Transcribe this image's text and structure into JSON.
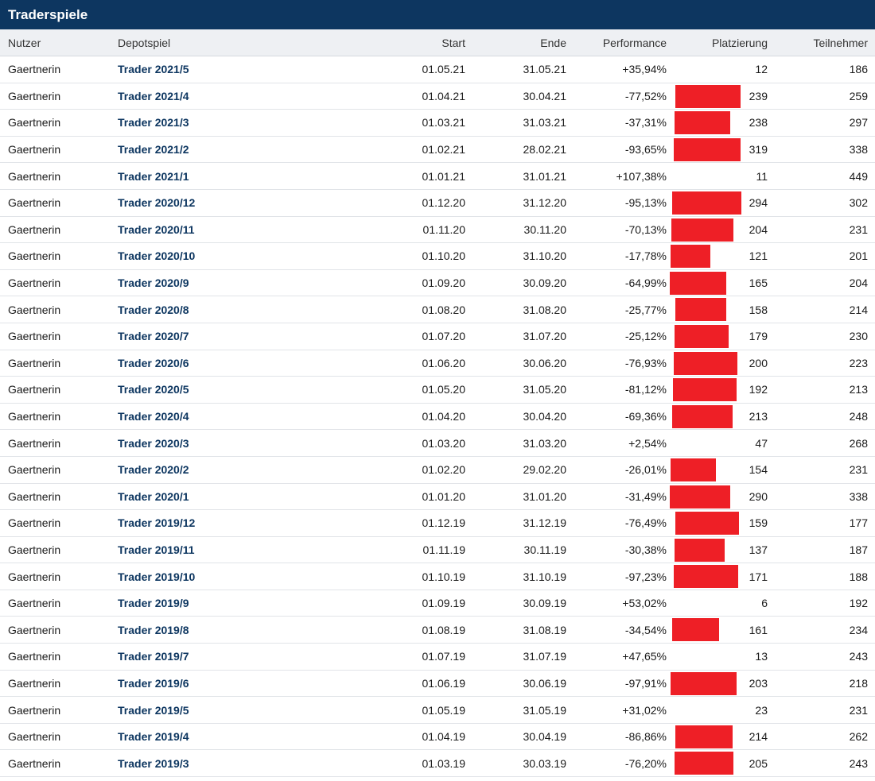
{
  "panel": {
    "title": "Traderspiele"
  },
  "columns": {
    "user": "Nutzer",
    "game": "Depotspiel",
    "start": "Start",
    "end": "Ende",
    "performance": "Performance",
    "placement": "Platzierung",
    "participants": "Teilnehmer"
  },
  "colors": {
    "header_bg": "#0d3660",
    "bar": "#ee1f26",
    "link": "#0d3660"
  },
  "rows": [
    {
      "user": "Gaertnerin",
      "game": "Trader 2021/5",
      "start": "01.05.21",
      "end": "31.05.21",
      "performance": "+35,94%",
      "placement": "12",
      "participants": "186"
    },
    {
      "user": "Gaertnerin",
      "game": "Trader 2021/4",
      "start": "01.04.21",
      "end": "30.04.21",
      "performance": "-77,52%",
      "placement": "239",
      "participants": "259"
    },
    {
      "user": "Gaertnerin",
      "game": "Trader 2021/3",
      "start": "01.03.21",
      "end": "31.03.21",
      "performance": "-37,31%",
      "placement": "238",
      "participants": "297"
    },
    {
      "user": "Gaertnerin",
      "game": "Trader 2021/2",
      "start": "01.02.21",
      "end": "28.02.21",
      "performance": "-93,65%",
      "placement": "319",
      "participants": "338"
    },
    {
      "user": "Gaertnerin",
      "game": "Trader 2021/1",
      "start": "01.01.21",
      "end": "31.01.21",
      "performance": "+107,38%",
      "placement": "11",
      "participants": "449"
    },
    {
      "user": "Gaertnerin",
      "game": "Trader 2020/12",
      "start": "01.12.20",
      "end": "31.12.20",
      "performance": "-95,13%",
      "placement": "294",
      "participants": "302"
    },
    {
      "user": "Gaertnerin",
      "game": "Trader 2020/11",
      "start": "01.11.20",
      "end": "30.11.20",
      "performance": "-70,13%",
      "placement": "204",
      "participants": "231"
    },
    {
      "user": "Gaertnerin",
      "game": "Trader 2020/10",
      "start": "01.10.20",
      "end": "31.10.20",
      "performance": "-17,78%",
      "placement": "121",
      "participants": "201"
    },
    {
      "user": "Gaertnerin",
      "game": "Trader 2020/9",
      "start": "01.09.20",
      "end": "30.09.20",
      "performance": "-64,99%",
      "placement": "165",
      "participants": "204"
    },
    {
      "user": "Gaertnerin",
      "game": "Trader 2020/8",
      "start": "01.08.20",
      "end": "31.08.20",
      "performance": "-25,77%",
      "placement": "158",
      "participants": "214"
    },
    {
      "user": "Gaertnerin",
      "game": "Trader 2020/7",
      "start": "01.07.20",
      "end": "31.07.20",
      "performance": "-25,12%",
      "placement": "179",
      "participants": "230"
    },
    {
      "user": "Gaertnerin",
      "game": "Trader 2020/6",
      "start": "01.06.20",
      "end": "30.06.20",
      "performance": "-76,93%",
      "placement": "200",
      "participants": "223"
    },
    {
      "user": "Gaertnerin",
      "game": "Trader 2020/5",
      "start": "01.05.20",
      "end": "31.05.20",
      "performance": "-81,12%",
      "placement": "192",
      "participants": "213"
    },
    {
      "user": "Gaertnerin",
      "game": "Trader 2020/4",
      "start": "01.04.20",
      "end": "30.04.20",
      "performance": "-69,36%",
      "placement": "213",
      "participants": "248"
    },
    {
      "user": "Gaertnerin",
      "game": "Trader 2020/3",
      "start": "01.03.20",
      "end": "31.03.20",
      "performance": "+2,54%",
      "placement": "47",
      "participants": "268"
    },
    {
      "user": "Gaertnerin",
      "game": "Trader 2020/2",
      "start": "01.02.20",
      "end": "29.02.20",
      "performance": "-26,01%",
      "placement": "154",
      "participants": "231"
    },
    {
      "user": "Gaertnerin",
      "game": "Trader 2020/1",
      "start": "01.01.20",
      "end": "31.01.20",
      "performance": "-31,49%",
      "placement": "290",
      "participants": "338"
    },
    {
      "user": "Gaertnerin",
      "game": "Trader 2019/12",
      "start": "01.12.19",
      "end": "31.12.19",
      "performance": "-76,49%",
      "placement": "159",
      "participants": "177"
    },
    {
      "user": "Gaertnerin",
      "game": "Trader 2019/11",
      "start": "01.11.19",
      "end": "30.11.19",
      "performance": "-30,38%",
      "placement": "137",
      "participants": "187"
    },
    {
      "user": "Gaertnerin",
      "game": "Trader 2019/10",
      "start": "01.10.19",
      "end": "31.10.19",
      "performance": "-97,23%",
      "placement": "171",
      "participants": "188"
    },
    {
      "user": "Gaertnerin",
      "game": "Trader 2019/9",
      "start": "01.09.19",
      "end": "30.09.19",
      "performance": "+53,02%",
      "placement": "6",
      "participants": "192"
    },
    {
      "user": "Gaertnerin",
      "game": "Trader 2019/8",
      "start": "01.08.19",
      "end": "31.08.19",
      "performance": "-34,54%",
      "placement": "161",
      "participants": "234"
    },
    {
      "user": "Gaertnerin",
      "game": "Trader 2019/7",
      "start": "01.07.19",
      "end": "31.07.19",
      "performance": "+47,65%",
      "placement": "13",
      "participants": "243"
    },
    {
      "user": "Gaertnerin",
      "game": "Trader 2019/6",
      "start": "01.06.19",
      "end": "30.06.19",
      "performance": "-97,91%",
      "placement": "203",
      "participants": "218"
    },
    {
      "user": "Gaertnerin",
      "game": "Trader 2019/5",
      "start": "01.05.19",
      "end": "31.05.19",
      "performance": "+31,02%",
      "placement": "23",
      "participants": "231"
    },
    {
      "user": "Gaertnerin",
      "game": "Trader 2019/4",
      "start": "01.04.19",
      "end": "30.04.19",
      "performance": "-86,86%",
      "placement": "214",
      "participants": "262"
    },
    {
      "user": "Gaertnerin",
      "game": "Trader 2019/3",
      "start": "01.03.19",
      "end": "30.03.19",
      "performance": "-76,20%",
      "placement": "205",
      "participants": "243"
    }
  ]
}
